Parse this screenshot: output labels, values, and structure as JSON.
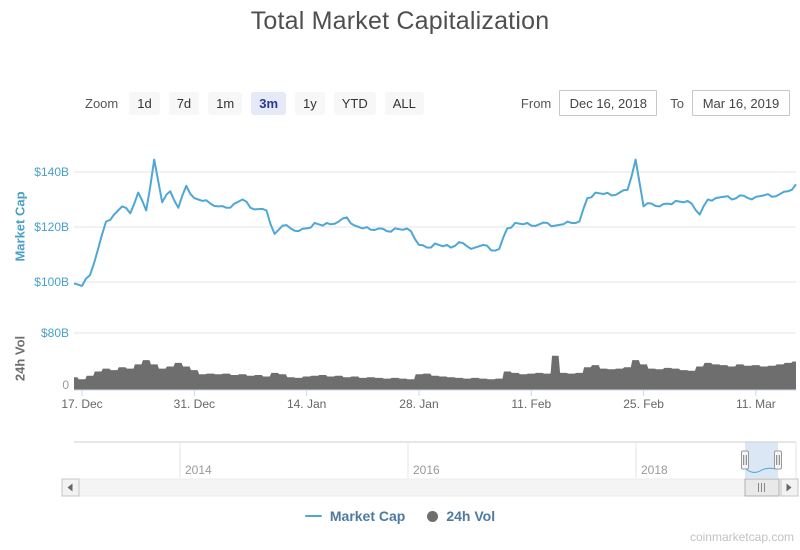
{
  "title": "Total Market Capitalization",
  "toolbar": {
    "zoom_label": "Zoom",
    "buttons": [
      {
        "label": "1d",
        "selected": false
      },
      {
        "label": "7d",
        "selected": false
      },
      {
        "label": "1m",
        "selected": false
      },
      {
        "label": "3m",
        "selected": true
      },
      {
        "label": "1y",
        "selected": false
      },
      {
        "label": "YTD",
        "selected": false
      },
      {
        "label": "ALL",
        "selected": false
      }
    ],
    "from_label": "From",
    "from_value": "Dec 16, 2018",
    "to_label": "To",
    "to_value": "Mar 16, 2019"
  },
  "colors": {
    "line": "#4FA7D6",
    "volume": "#6E6E6E",
    "axis_blue": "#4AA0C9",
    "grid": "#E6E6E6",
    "axis_line": "#CCD6EB",
    "tick_text": "#666666",
    "muted_text": "#999999",
    "nav_selection": "#BFD4EC",
    "legend_text": "#4D7AA0"
  },
  "chart_data": [
    {
      "type": "line",
      "name": "Market Cap",
      "axis_title": "Market Cap",
      "unit": "USD billions",
      "x_range": [
        "Dec 16, 2018",
        "Mar 16, 2019"
      ],
      "ylim": [
        89,
        148
      ],
      "yticks": [
        {
          "label": "$140B",
          "value": 140
        },
        {
          "label": "$120B",
          "value": 120
        },
        {
          "label": "$100B",
          "value": 100
        }
      ],
      "values": [
        99.5,
        98.6,
        102.5,
        112.0,
        122.0,
        124.5,
        127.5,
        125.0,
        132.5,
        126.0,
        144.5,
        129.0,
        133.0,
        127.0,
        135.0,
        130.5,
        129.5,
        128.5,
        127.5,
        127.0,
        128.5,
        130.0,
        127.0,
        126.5,
        126.0,
        117.5,
        120.5,
        119.5,
        118.5,
        119.5,
        121.5,
        120.5,
        121.0,
        122.0,
        123.5,
        120.5,
        119.5,
        119.0,
        119.5,
        118.5,
        119.5,
        119.0,
        118.5,
        113.5,
        112.5,
        114.0,
        113.0,
        112.5,
        114.5,
        113.0,
        112.5,
        113.5,
        111.5,
        112.0,
        119.5,
        121.5,
        121.0,
        120.5,
        121.0,
        121.5,
        120.5,
        121.0,
        121.5,
        122.0,
        130.5,
        132.5,
        132.0,
        131.5,
        132.5,
        133.5,
        144.5,
        127.5,
        128.5,
        127.5,
        128.5,
        129.5,
        129.0,
        128.5,
        124.5,
        130.0,
        130.5,
        131.0,
        130.0,
        131.5,
        130.5,
        131.0,
        131.5,
        131.0,
        132.0,
        133.0,
        135.5
      ]
    },
    {
      "type": "area",
      "name": "24h Vol",
      "axis_title": "24h Vol",
      "unit": "USD billions",
      "ylim": [
        0,
        85
      ],
      "yticks": [
        {
          "label": "$80B",
          "value": 80
        },
        {
          "label": "0",
          "value": 0
        }
      ],
      "values": [
        18,
        15,
        20,
        26,
        30,
        28,
        32,
        30,
        36,
        42,
        36,
        30,
        33,
        38,
        33,
        28,
        22,
        23,
        22,
        23,
        21,
        22,
        20,
        21,
        19,
        24,
        22,
        18,
        17,
        19,
        20,
        21,
        19,
        20,
        18,
        19,
        17,
        18,
        17,
        16,
        17,
        16,
        15,
        22,
        23,
        20,
        19,
        18,
        17,
        16,
        17,
        16,
        15,
        16,
        26,
        24,
        22,
        23,
        24,
        23,
        48,
        24,
        23,
        24,
        32,
        35,
        30,
        29,
        30,
        32,
        42,
        36,
        30,
        29,
        31,
        30,
        28,
        27,
        33,
        38,
        36,
        35,
        33,
        36,
        34,
        35,
        33,
        34,
        36,
        38,
        40
      ]
    }
  ],
  "xaxis": {
    "tick_labels": [
      "17. Dec",
      "31. Dec",
      "14. Jan",
      "28. Jan",
      "11. Feb",
      "25. Feb",
      "11. Mar"
    ],
    "tick_days": [
      1,
      15,
      29,
      43,
      57,
      71,
      85
    ],
    "total_days": 90
  },
  "navigator": {
    "year_labels": [
      "2014",
      "2016",
      "2018"
    ],
    "year_positions": [
      180,
      408,
      636
    ],
    "selection": {
      "x": 745,
      "width": 33
    }
  },
  "legend": [
    {
      "label": "Market Cap",
      "marker": "line"
    },
    {
      "label": "24h Vol",
      "marker": "circle"
    }
  ],
  "watermark": "coinmarketcap.com"
}
